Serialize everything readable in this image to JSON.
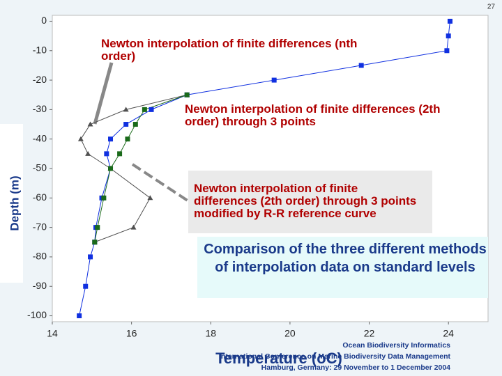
{
  "page_number": "27",
  "chart_data": {
    "type": "scatter-line",
    "x_label": "Temperature (oC)",
    "y_label": "Depth (m)",
    "xlim": [
      14,
      25
    ],
    "ylim": [
      -102,
      2
    ],
    "xticks": [
      14,
      16,
      18,
      20,
      22,
      24
    ],
    "yticks": [
      0,
      -10,
      -20,
      -30,
      -40,
      -50,
      -60,
      -70,
      -80,
      -90,
      -100
    ],
    "series": [
      {
        "color": "#1030e0",
        "marker": "square",
        "x": [
          24.04,
          24.0,
          23.96,
          21.8,
          19.6,
          17.4,
          16.5,
          15.86,
          15.47,
          15.37,
          15.47,
          15.25,
          15.1,
          15.07,
          14.96,
          14.84,
          14.68
        ],
        "values": [
          0,
          -5,
          -10,
          -15,
          -20,
          -25,
          -30,
          -35,
          -40,
          -45,
          -50,
          -60,
          -70,
          -75,
          -80,
          -90,
          -100
        ]
      },
      {
        "color": "#505050",
        "marker": "triangle",
        "x": [
          17.4,
          15.86,
          14.96,
          14.72,
          14.9,
          15.47,
          16.47,
          16.05,
          15.07
        ],
        "values": [
          -25,
          -30,
          -35,
          -40,
          -45,
          -50,
          -60,
          -70,
          -75
        ]
      },
      {
        "color": "#1a6a1a",
        "marker": "square",
        "x": [
          17.4,
          16.33,
          16.1,
          15.9,
          15.7,
          15.47,
          15.3,
          15.14,
          15.07
        ],
        "values": [
          -25,
          -30,
          -35,
          -40,
          -45,
          -50,
          -60,
          -70,
          -75
        ]
      }
    ],
    "annotations": [
      "Newton interpolation of finite differences (nth order)",
      "Newton interpolation of finite differences (2th order) through 3 points",
      "Newton interpolation of finite differences (2th order) through 3 points modified by R-R reference curve",
      "Comparison of the three different methods of interpolation data on standard levels"
    ]
  },
  "footer": [
    "Ocean Biodiversity Informatics",
    "International Conference on Marine Biodiversity Data Management",
    "Hamburg, Germany: 29 November to 1 December 2004"
  ]
}
